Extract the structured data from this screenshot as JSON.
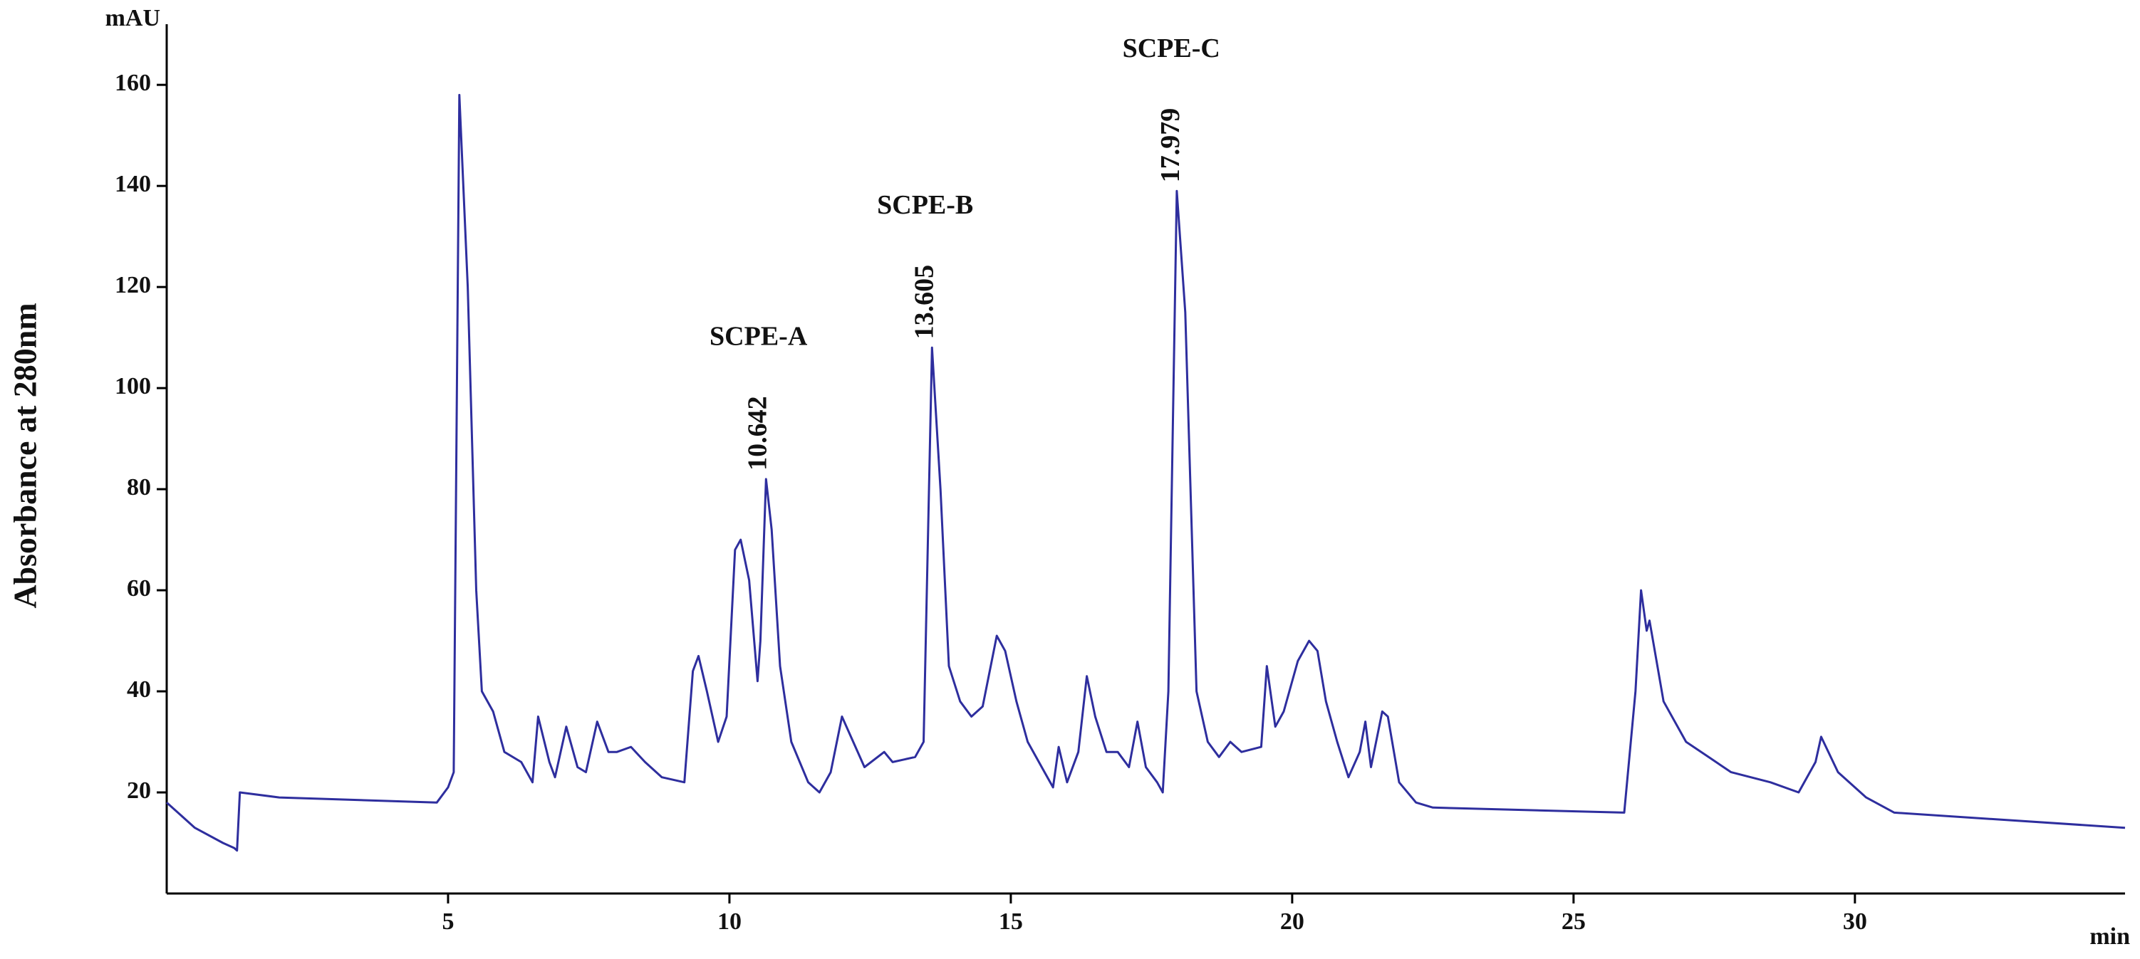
{
  "chart_data": {
    "type": "line",
    "y_label": "Absorbance at 280nm",
    "y_unit": "mAU",
    "x_unit": "min",
    "color": "#2e2e9e",
    "xlim": [
      0,
      34.8
    ],
    "ylim": [
      0,
      172
    ],
    "xticks": [
      5,
      10,
      15,
      20,
      25,
      30
    ],
    "yticks": [
      20,
      40,
      60,
      80,
      100,
      120,
      140,
      160
    ],
    "annotations": [
      {
        "text": "SCPE-A",
        "retention": 10.642
      },
      {
        "text": "SCPE-B",
        "retention": 13.605
      },
      {
        "text": "SCPE-C",
        "retention": 17.979
      }
    ],
    "x": [
      0,
      0.5,
      1.0,
      1.2,
      1.25,
      1.3,
      2,
      4.8,
      5.0,
      5.1,
      5.2,
      5.35,
      5.5,
      5.6,
      5.8,
      6.0,
      6.3,
      6.5,
      6.6,
      6.8,
      6.9,
      7.1,
      7.3,
      7.45,
      7.65,
      7.85,
      8.0,
      8.25,
      8.5,
      8.8,
      9.2,
      9.35,
      9.45,
      9.6,
      9.8,
      9.95,
      10.1,
      10.2,
      10.35,
      10.5,
      10.55,
      10.65,
      10.75,
      10.9,
      11.1,
      11.4,
      11.6,
      11.8,
      12.0,
      12.2,
      12.4,
      12.75,
      12.9,
      13.3,
      13.45,
      13.6,
      13.75,
      13.9,
      14.1,
      14.3,
      14.5,
      14.75,
      14.9,
      15.1,
      15.3,
      15.6,
      15.75,
      15.85,
      16.0,
      16.2,
      16.35,
      16.5,
      16.7,
      16.9,
      17.1,
      17.25,
      17.4,
      17.6,
      17.7,
      17.8,
      17.95,
      18.1,
      18.3,
      18.5,
      18.7,
      18.9,
      19.1,
      19.45,
      19.55,
      19.7,
      19.85,
      20.1,
      20.3,
      20.45,
      20.6,
      20.8,
      21.0,
      21.2,
      21.3,
      21.4,
      21.6,
      21.7,
      21.9,
      22.2,
      22.5,
      25.9,
      26.1,
      26.2,
      26.3,
      26.35,
      26.6,
      27.0,
      27.4,
      27.8,
      28.5,
      29.0,
      29.3,
      29.4,
      29.7,
      30.2,
      30.7,
      34.8
    ],
    "values": [
      18,
      13,
      10,
      9,
      8.5,
      20,
      19,
      18,
      21,
      24,
      158,
      120,
      60,
      40,
      36,
      28,
      26,
      22,
      35,
      26,
      23,
      33,
      25,
      24,
      34,
      28,
      28,
      29,
      26,
      23,
      22,
      44,
      47,
      40,
      30,
      35,
      68,
      70,
      62,
      42,
      50,
      82,
      72,
      45,
      30,
      22,
      20,
      24,
      35,
      30,
      25,
      28,
      26,
      27,
      30,
      108,
      80,
      45,
      38,
      35,
      37,
      51,
      48,
      38,
      30,
      24,
      21,
      29,
      22,
      28,
      43,
      35,
      28,
      28,
      25,
      34,
      25,
      22,
      20,
      40,
      139,
      115,
      40,
      30,
      27,
      30,
      28,
      29,
      45,
      33,
      36,
      46,
      50,
      48,
      38,
      30,
      23,
      28,
      34,
      25,
      36,
      35,
      22,
      18,
      17,
      16,
      40,
      60,
      52,
      54,
      38,
      30,
      27,
      24,
      22,
      20,
      26,
      31,
      24,
      19,
      16,
      13
    ]
  }
}
